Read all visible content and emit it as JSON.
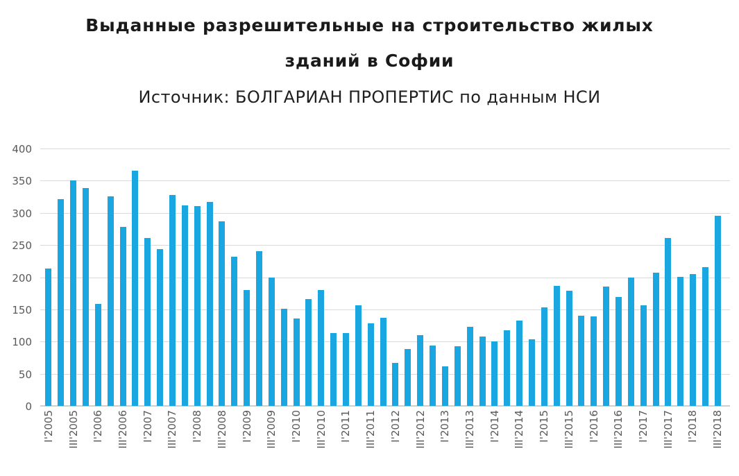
{
  "header": {
    "title_line1": "Выданные разрешительные на строительство жилых",
    "title_line2": "зданий в Софии",
    "subtitle": "Источник: БОЛГАРИАН ПРОПЕРТИС по данным НСИ"
  },
  "chart_data": {
    "type": "bar",
    "title": "Выданные разрешительные на строительство жилых зданий в Софии",
    "subtitle": "Источник: БОЛГАРИАН ПРОПЕРТИС по данным НСИ",
    "categories": [
      "I'2005",
      "II'2005",
      "III'2005",
      "IV'2005",
      "I'2006",
      "II'2006",
      "III'2006",
      "IV'2006",
      "I'2007",
      "II'2007",
      "III'2007",
      "IV'2007",
      "I'2008",
      "II'2008",
      "III'2008",
      "IV'2008",
      "I'2009",
      "II'2009",
      "III'2009",
      "IV'2009",
      "I'2010",
      "II'2010",
      "III'2010",
      "IV'2010",
      "I'2011",
      "II'2011",
      "III'2011",
      "IV'2011",
      "I'2012",
      "II'2012",
      "III'2012",
      "IV'2012",
      "I'2013",
      "II'2013",
      "III'2013",
      "IV'2013",
      "I'2014",
      "II'2014",
      "III'2014",
      "IV'2014",
      "I'2015",
      "II'2015",
      "III'2015",
      "IV'2015",
      "I'2016",
      "II'2016",
      "III'2016",
      "IV'2016",
      "I'2017",
      "II'2017",
      "III'2017",
      "IV'2017",
      "I'2018",
      "II'2018",
      "III'2018"
    ],
    "values": [
      214,
      322,
      351,
      340,
      159,
      327,
      279,
      367,
      262,
      244,
      329,
      312,
      311,
      318,
      288,
      232,
      181,
      241,
      200,
      151,
      136,
      166,
      181,
      114,
      113,
      157,
      129,
      137,
      67,
      89,
      110,
      94,
      62,
      93,
      123,
      108,
      101,
      118,
      133,
      104,
      154,
      187,
      180,
      141,
      140,
      186,
      170,
      200,
      157,
      208,
      262,
      201,
      205,
      216,
      296
    ],
    "x_tick_labels": [
      "I'2005",
      "III'2005",
      "I'2006",
      "III'2006",
      "I'2007",
      "III'2007",
      "I'2008",
      "III'2008",
      "I'2009",
      "III'2009",
      "I'2010",
      "III'2010",
      "I'2011",
      "III'2011",
      "I'2012",
      "III'2012",
      "I'2013",
      "III'2013",
      "I'2014",
      "III'2014",
      "I'2015",
      "III'2015",
      "I'2016",
      "III'2016",
      "I'2017",
      "III'2017",
      "I'2018",
      "III'2018"
    ],
    "x_tick_every": 2,
    "xlabel": "",
    "ylabel": "",
    "ylim": [
      0,
      400
    ],
    "yticks": [
      0,
      50,
      100,
      150,
      200,
      250,
      300,
      350,
      400
    ],
    "grid": true,
    "legend": "none",
    "bar_color": "#1AA7E1",
    "grid_color": "#D9D9D9",
    "axisline_color": "#CFCDCD",
    "axis_label_color": "#595959",
    "title_color": "#1A1A1A"
  }
}
